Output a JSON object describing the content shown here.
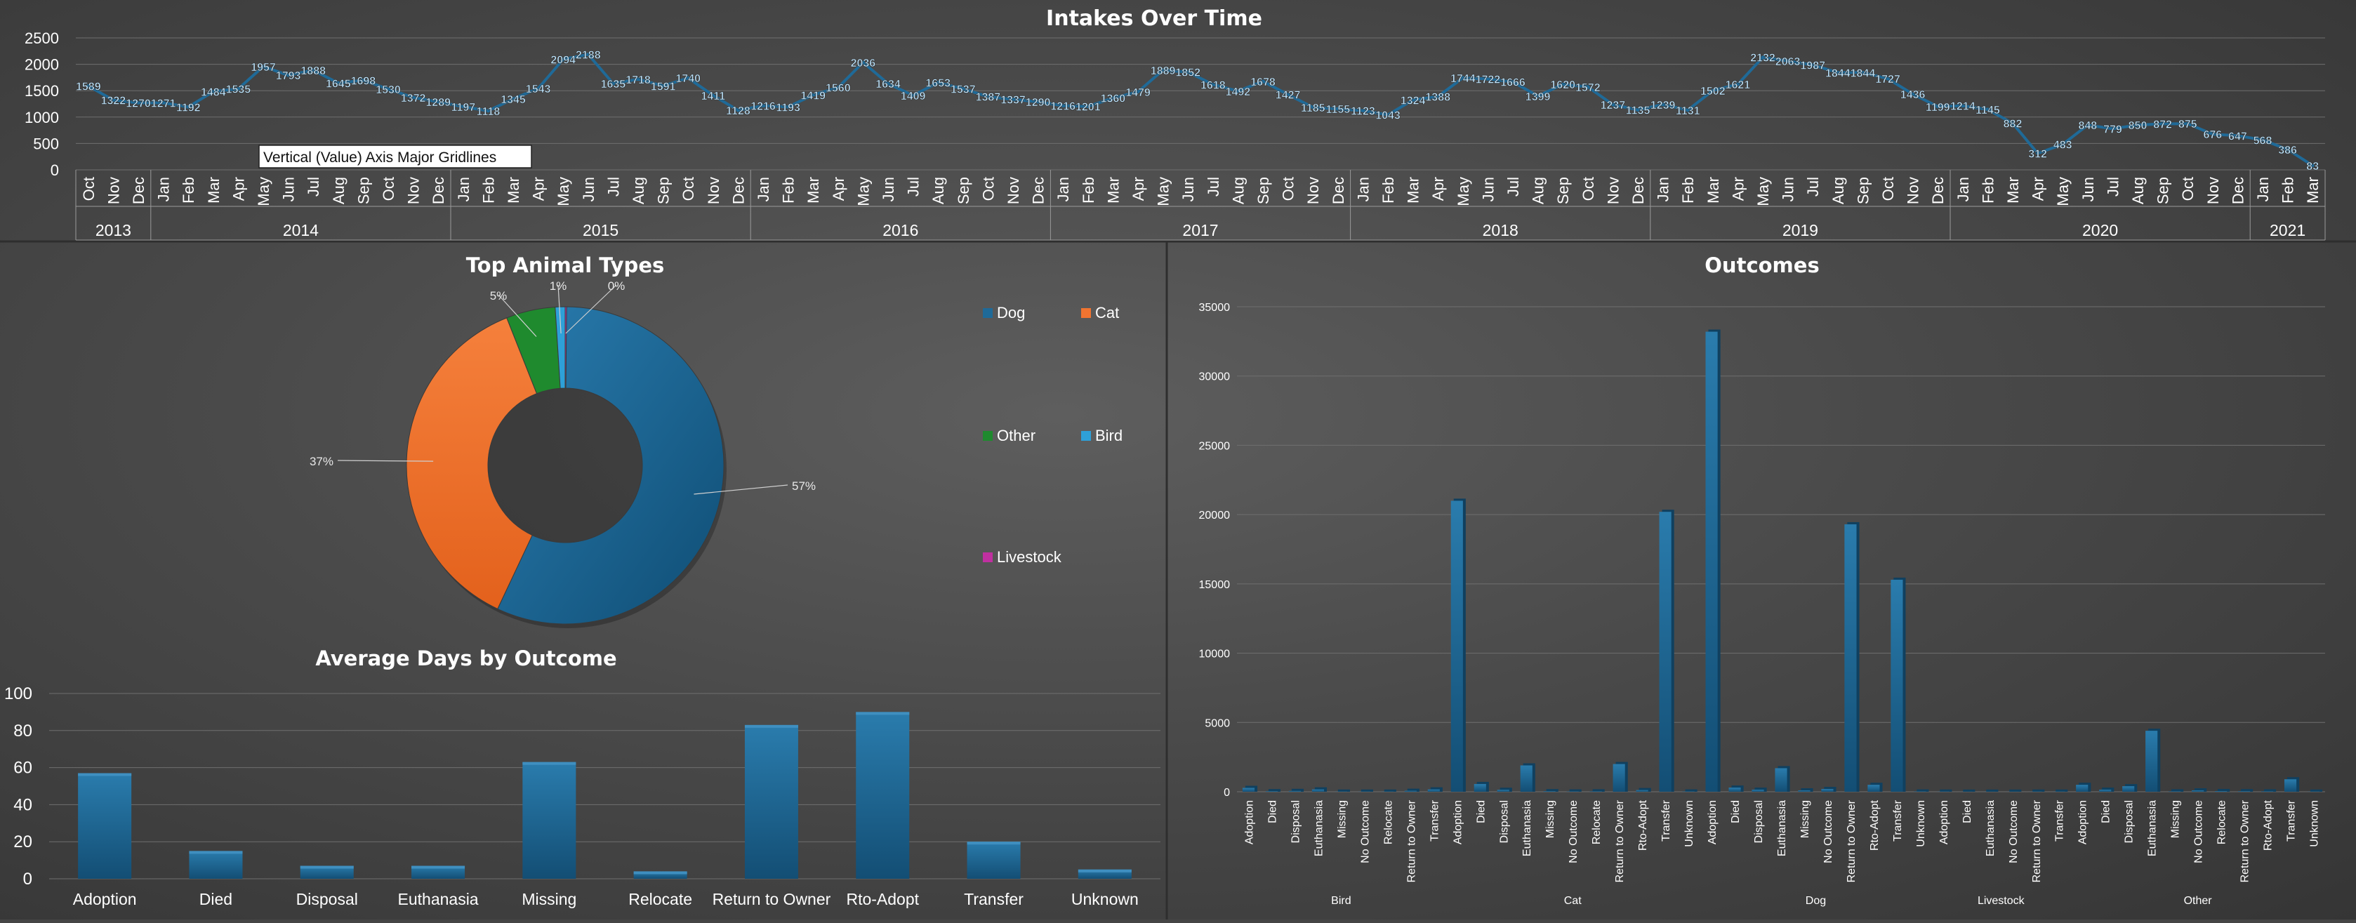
{
  "chart_data": [
    {
      "type": "line",
      "title": "Intakes Over Time",
      "tooltip": "Vertical (Value) Axis Major Gridlines",
      "ylim": [
        0,
        2500
      ],
      "yticks": [
        0,
        500,
        1000,
        1500,
        2000,
        2500
      ],
      "years": [
        {
          "label": "2013",
          "months": [
            "Oct",
            "Nov",
            "Dec"
          ]
        },
        {
          "label": "2014",
          "months": [
            "Jan",
            "Feb",
            "Mar",
            "Apr",
            "May",
            "Jun",
            "Jul",
            "Aug",
            "Sep",
            "Oct",
            "Nov",
            "Dec"
          ]
        },
        {
          "label": "2015",
          "months": [
            "Jan",
            "Feb",
            "Mar",
            "Apr",
            "May",
            "Jun",
            "Jul",
            "Aug",
            "Sep",
            "Oct",
            "Nov",
            "Dec"
          ]
        },
        {
          "label": "2016",
          "months": [
            "Jan",
            "Feb",
            "Mar",
            "Apr",
            "May",
            "Jun",
            "Jul",
            "Aug",
            "Sep",
            "Oct",
            "Nov",
            "Dec"
          ]
        },
        {
          "label": "2017",
          "months": [
            "Jan",
            "Feb",
            "Mar",
            "Apr",
            "May",
            "Jun",
            "Jul",
            "Aug",
            "Sep",
            "Oct",
            "Nov",
            "Dec"
          ]
        },
        {
          "label": "2018",
          "months": [
            "Jan",
            "Feb",
            "Mar",
            "Apr",
            "May",
            "Jun",
            "Jul",
            "Aug",
            "Sep",
            "Oct",
            "Nov",
            "Dec"
          ]
        },
        {
          "label": "2019",
          "months": [
            "Jan",
            "Feb",
            "Mar",
            "Apr",
            "May",
            "Jun",
            "Jul",
            "Aug",
            "Sep",
            "Oct",
            "Nov",
            "Dec"
          ]
        },
        {
          "label": "2020",
          "months": [
            "Jan",
            "Feb",
            "Mar",
            "Apr",
            "May",
            "Jun",
            "Jul",
            "Aug",
            "Sep",
            "Oct",
            "Nov",
            "Dec"
          ]
        },
        {
          "label": "2021",
          "months": [
            "Jan",
            "Feb",
            "Mar"
          ]
        }
      ],
      "values": [
        1589,
        1322,
        1270,
        1271,
        1192,
        1484,
        1535,
        1957,
        1793,
        1888,
        1645,
        1698,
        1530,
        1372,
        1289,
        1197,
        1118,
        1345,
        1543,
        2094,
        2188,
        1635,
        1718,
        1591,
        1740,
        1411,
        1128,
        1216,
        1193,
        1419,
        1560,
        2036,
        1634,
        1409,
        1653,
        1537,
        1387,
        1337,
        1290,
        1216,
        1201,
        1360,
        1479,
        1889,
        1852,
        1618,
        1492,
        1678,
        1427,
        1185,
        1155,
        1123,
        1043,
        1324,
        1388,
        1744,
        1722,
        1666,
        1399,
        1620,
        1572,
        1237,
        1135,
        1239,
        1131,
        1502,
        1621,
        2132,
        2063,
        1987,
        1844,
        1844,
        1727,
        1436,
        1199,
        1214,
        1145,
        882,
        312,
        483,
        848,
        779,
        850,
        872,
        875,
        676,
        647,
        568,
        386,
        83
      ]
    },
    {
      "type": "pie",
      "title": "Top Animal Types",
      "labels": [
        "Dog",
        "Cat",
        "Other",
        "Bird",
        "Livestock"
      ],
      "values": [
        57,
        37,
        5,
        1,
        0
      ],
      "value_labels": [
        "57%",
        "37%",
        "5%",
        "1%",
        "0%"
      ],
      "colors": [
        "#1f6a98",
        "#f07430",
        "#1f8a2e",
        "#2ea0d8",
        "#c030a0"
      ]
    },
    {
      "type": "bar",
      "title": "Average Days by Outcome",
      "categories": [
        "Adoption",
        "Died",
        "Disposal",
        "Euthanasia",
        "Missing",
        "Relocate",
        "Return to Owner",
        "Rto-Adopt",
        "Transfer",
        "Unknown"
      ],
      "values": [
        57,
        15,
        7,
        7,
        63,
        4,
        83,
        90,
        20,
        5
      ],
      "ylim": [
        0,
        100
      ],
      "yticks": [
        0,
        20,
        40,
        60,
        80,
        100
      ]
    },
    {
      "type": "bar",
      "title": "Outcomes",
      "ylim": [
        0,
        35000
      ],
      "yticks": [
        0,
        5000,
        10000,
        15000,
        20000,
        25000,
        30000,
        35000
      ],
      "groups": [
        {
          "label": "Bird",
          "categories": [
            "Adoption",
            "Died",
            "Disposal",
            "Euthanasia",
            "Missing",
            "No Outcome",
            "Relocate",
            "Return to Owner",
            "Transfer"
          ],
          "values": [
            280,
            40,
            60,
            170,
            10,
            10,
            10,
            70,
            170
          ]
        },
        {
          "label": "Cat",
          "categories": [
            "Adoption",
            "Died",
            "Disposal",
            "Euthanasia",
            "Missing",
            "No Outcome",
            "Relocate",
            "Return to Owner",
            "Rto-Adopt",
            "Transfer",
            "Unknown"
          ],
          "values": [
            21000,
            560,
            140,
            1900,
            40,
            20,
            30,
            2000,
            120,
            20200,
            20
          ]
        },
        {
          "label": "Dog",
          "categories": [
            "Adoption",
            "Died",
            "Disposal",
            "Euthanasia",
            "Missing",
            "No Outcome",
            "Return to Owner",
            "Rto-Adopt",
            "Transfer",
            "Unknown"
          ],
          "values": [
            33200,
            300,
            150,
            1700,
            100,
            200,
            19300,
            500,
            15300,
            20
          ]
        },
        {
          "label": "Livestock",
          "categories": [
            "Adoption",
            "Died",
            "Euthanasia",
            "No Outcome",
            "Return to Owner",
            "Transfer"
          ],
          "values": [
            10,
            5,
            5,
            5,
            10,
            10
          ]
        },
        {
          "label": "Other",
          "categories": [
            "Adoption",
            "Died",
            "Disposal",
            "Euthanasia",
            "Missing",
            "No Outcome",
            "Relocate",
            "Return to Owner",
            "Rto-Adopt",
            "Transfer",
            "Unknown"
          ],
          "values": [
            500,
            150,
            400,
            4400,
            30,
            100,
            50,
            40,
            30,
            900,
            10
          ]
        }
      ]
    }
  ],
  "colors": {
    "bar": "#1a6792",
    "line": "#1f6a98",
    "label_text": "#bfe6ff",
    "axis_text": "#ffffff",
    "gridline": "#6f6f6f"
  }
}
